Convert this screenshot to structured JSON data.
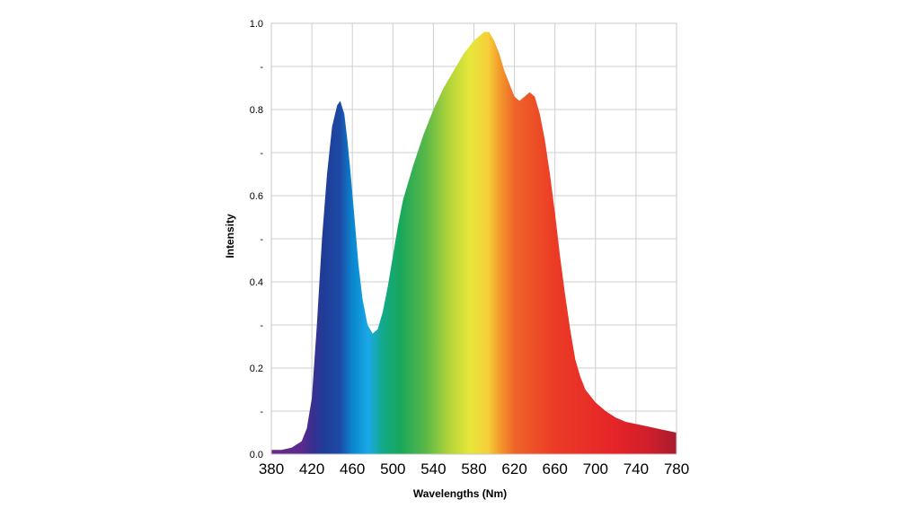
{
  "chart_data": {
    "type": "area",
    "title": "",
    "xlabel": "Wavelengths (Nm)",
    "ylabel": "Intensity",
    "xlim": [
      380,
      780
    ],
    "ylim": [
      0,
      1.0
    ],
    "x_ticks": [
      "380",
      "420",
      "460",
      "500",
      "540",
      "580",
      "620",
      "660",
      "700",
      "740",
      "780"
    ],
    "y_ticks": [
      "0.0",
      "-",
      "0.2",
      "-",
      "0.4",
      "-",
      "0.6",
      "-",
      "0.8",
      "-",
      "1.0"
    ],
    "grid": true,
    "fill": "visible spectrum gradient (violet to deep red)",
    "series": [
      {
        "x": [
          380,
          390,
          400,
          410,
          415,
          420,
          425,
          430,
          435,
          440,
          445,
          448,
          452,
          455,
          458,
          462,
          466,
          470,
          475,
          480,
          485,
          490,
          495,
          500,
          505,
          510,
          520,
          530,
          540,
          550,
          560,
          570,
          580,
          590,
          595,
          600,
          605,
          610,
          615,
          620,
          625,
          630,
          635,
          640,
          645,
          650,
          655,
          660,
          665,
          670,
          675,
          680,
          685,
          690,
          700,
          710,
          720,
          730,
          740,
          750,
          760,
          770,
          780
        ],
        "y": [
          0.01,
          0.01,
          0.015,
          0.03,
          0.06,
          0.13,
          0.3,
          0.5,
          0.65,
          0.76,
          0.81,
          0.82,
          0.79,
          0.73,
          0.66,
          0.55,
          0.44,
          0.36,
          0.3,
          0.28,
          0.29,
          0.33,
          0.39,
          0.46,
          0.53,
          0.59,
          0.67,
          0.74,
          0.8,
          0.85,
          0.89,
          0.93,
          0.96,
          0.98,
          0.98,
          0.96,
          0.93,
          0.89,
          0.86,
          0.83,
          0.82,
          0.83,
          0.84,
          0.83,
          0.79,
          0.73,
          0.65,
          0.56,
          0.46,
          0.37,
          0.29,
          0.22,
          0.18,
          0.15,
          0.12,
          0.1,
          0.085,
          0.075,
          0.07,
          0.065,
          0.06,
          0.055,
          0.05
        ]
      }
    ]
  }
}
